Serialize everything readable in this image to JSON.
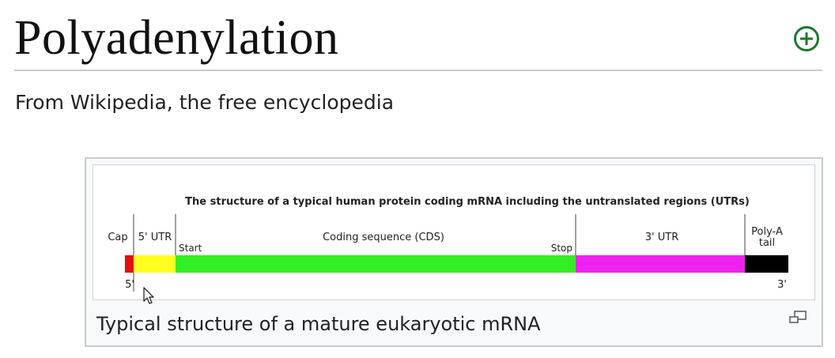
{
  "page": {
    "title": "Polyadenylation",
    "tagline": "From Wikipedia, the free encyclopedia"
  },
  "icons": {
    "add": "plus-circle-icon",
    "enlarge": "enlarge-icon",
    "cursor": "mouse-pointer-icon"
  },
  "colors": {
    "cap": "#e01010",
    "utr5": "#ffff22",
    "cds": "#33ee22",
    "utr3": "#ee22ee",
    "polya": "#000000",
    "accent_green": "#1b7a2e"
  },
  "figure": {
    "title": "The structure of a typical human protein coding mRNA including the untranslated regions (UTRs)",
    "labels": {
      "cap": "Cap",
      "utr5": "5' UTR",
      "start": "Start",
      "cds": "Coding sequence (CDS)",
      "stop": "Stop",
      "utr3": "3' UTR",
      "polya_line1": "Poly-A",
      "polya_line2": "tail",
      "end5": "5'",
      "end3": "3'"
    }
  },
  "caption": "Typical structure of a mature eukaryotic mRNA"
}
